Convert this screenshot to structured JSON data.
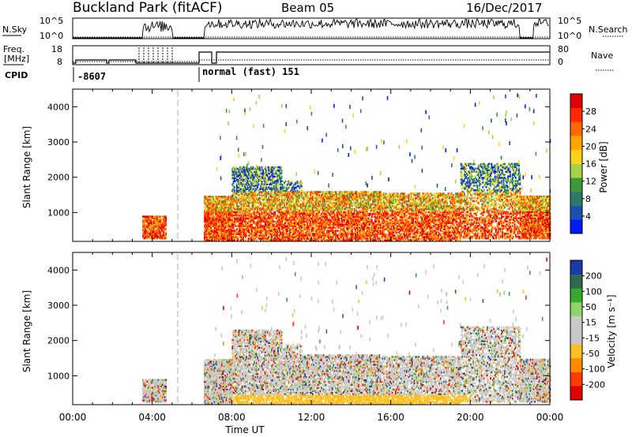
{
  "header": {
    "station": "Buckland Park (fitACF)",
    "beam": "Beam 05",
    "date": "16/Dec/2017"
  },
  "strip": {
    "nsky_label": "N.Sky",
    "nsky_ticks": [
      "10^5",
      "10^0"
    ],
    "nsearch_label": "N.Search",
    "nsearch_ticks": [
      "10^5",
      "10^0"
    ],
    "freq_label": "Freq.",
    "freq_unit": "[MHz]",
    "freq_ticks": [
      "18",
      "8"
    ],
    "nave_label": "Nave",
    "nave_ticks": [
      "80",
      "0"
    ],
    "cpid_label": "CPID",
    "cpid_1": "-8607",
    "cpid_2": "normal (fast) 151"
  },
  "colors": {
    "power": [
      "#0018ff",
      "#1c4fb0",
      "#2e7a6a",
      "#3d9a3a",
      "#a8d24a",
      "#ffd21a",
      "#ffa500",
      "#ff6a00",
      "#ff2a00",
      "#e00000"
    ],
    "velocity": [
      "#e00000",
      "#ff3c00",
      "#ff8c00",
      "#ffbf20",
      "#c8c8c8",
      "#c8c8c8",
      "#8dd46a",
      "#3aa830",
      "#2d6a4f",
      "#1a3aa8"
    ],
    "dash": "#bbbbbb"
  },
  "chart_data": [
    {
      "type": "heatmap",
      "panel": "power",
      "ylabel": "Slant Range [km]",
      "y_ticks": [
        "1000",
        "2000",
        "3000",
        "4000"
      ],
      "ylim": [
        180,
        4500
      ],
      "colorbar_label": "Power [dB]",
      "colorbar_ticks": [
        "4",
        "8",
        "12",
        "16",
        "20",
        "24",
        "28"
      ],
      "colorbar_range": [
        0,
        32
      ]
    },
    {
      "type": "heatmap",
      "panel": "velocity",
      "ylabel": "Slant Range [km]",
      "y_ticks": [
        "1000",
        "2000",
        "3000",
        "4000"
      ],
      "ylim": [
        180,
        4500
      ],
      "colorbar_label": "Velocity [m s⁻¹]",
      "colorbar_ticks": [
        "-200",
        "-100",
        "-50",
        "-15",
        "15",
        "50",
        "100",
        "200"
      ],
      "xlabel": "Time UT",
      "x_ticks": [
        "00:00",
        "04:00",
        "08:00",
        "12:00",
        "16:00",
        "20:00",
        "00:00"
      ],
      "xlim_hours": [
        0,
        24
      ]
    }
  ]
}
